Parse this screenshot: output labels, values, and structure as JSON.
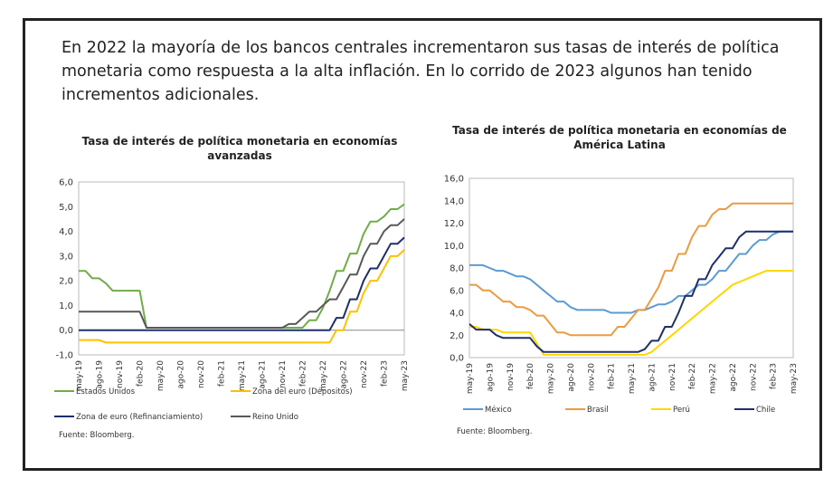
{
  "headline": "En 2022 la mayoría de los bancos centrales incrementaron sus tasas de interés de política monetaria como respuesta a la alta inflación. En lo corrido de 2023 algunos han tenido incrementos adicionales.",
  "chart_data": [
    {
      "type": "line",
      "title": "Tasa de interés de política monetaria en economías avanzadas",
      "ylim": [
        -1,
        6
      ],
      "yticks": [
        "-1,0",
        "0,0",
        "1,0",
        "2,0",
        "3,0",
        "4,0",
        "5,0",
        "6,0"
      ],
      "xticks": [
        "may-19",
        "ago-19",
        "nov-19",
        "feb-20",
        "may-20",
        "ago-20",
        "nov-20",
        "feb-21",
        "may-21",
        "ago-21",
        "nov-21",
        "feb-22",
        "may-22",
        "ago-22",
        "nov-22",
        "feb-23",
        "may-23"
      ],
      "x_range": [
        "may-19",
        "may-23"
      ],
      "frequency": "monthly",
      "grid": false,
      "legend": "bottom",
      "source": "Fuente: Bloomberg.",
      "series": [
        {
          "name": "Estados Unidos",
          "color": "#70ad47",
          "values": [
            2.4,
            2.4,
            2.1,
            2.1,
            1.9,
            1.6,
            1.6,
            1.6,
            1.6,
            1.6,
            0.1,
            0.1,
            0.1,
            0.1,
            0.1,
            0.1,
            0.1,
            0.1,
            0.1,
            0.1,
            0.1,
            0.1,
            0.1,
            0.1,
            0.1,
            0.1,
            0.1,
            0.1,
            0.1,
            0.1,
            0.1,
            0.1,
            0.1,
            0.1,
            0.4,
            0.4,
            0.9,
            1.6,
            2.4,
            2.4,
            3.1,
            3.1,
            3.9,
            4.4,
            4.4,
            4.6,
            4.9,
            4.9,
            5.1
          ]
        },
        {
          "name": "Zona del euro (Dépositos)",
          "color": "#ffc000",
          "values": [
            -0.4,
            -0.4,
            -0.4,
            -0.4,
            -0.5,
            -0.5,
            -0.5,
            -0.5,
            -0.5,
            -0.5,
            -0.5,
            -0.5,
            -0.5,
            -0.5,
            -0.5,
            -0.5,
            -0.5,
            -0.5,
            -0.5,
            -0.5,
            -0.5,
            -0.5,
            -0.5,
            -0.5,
            -0.5,
            -0.5,
            -0.5,
            -0.5,
            -0.5,
            -0.5,
            -0.5,
            -0.5,
            -0.5,
            -0.5,
            -0.5,
            -0.5,
            -0.5,
            -0.5,
            0,
            0,
            0.75,
            0.75,
            1.5,
            2.0,
            2.0,
            2.5,
            3.0,
            3.0,
            3.25
          ]
        },
        {
          "name": "Zona de euro (Refinanciamiento)",
          "color": "#1f2f6b",
          "values": [
            0,
            0,
            0,
            0,
            0,
            0,
            0,
            0,
            0,
            0,
            0,
            0,
            0,
            0,
            0,
            0,
            0,
            0,
            0,
            0,
            0,
            0,
            0,
            0,
            0,
            0,
            0,
            0,
            0,
            0,
            0,
            0,
            0,
            0,
            0,
            0,
            0,
            0,
            0.5,
            0.5,
            1.25,
            1.25,
            2.0,
            2.5,
            2.5,
            3.0,
            3.5,
            3.5,
            3.75
          ]
        },
        {
          "name": "Reino Unido",
          "color": "#595959",
          "values": [
            0.75,
            0.75,
            0.75,
            0.75,
            0.75,
            0.75,
            0.75,
            0.75,
            0.75,
            0.75,
            0.1,
            0.1,
            0.1,
            0.1,
            0.1,
            0.1,
            0.1,
            0.1,
            0.1,
            0.1,
            0.1,
            0.1,
            0.1,
            0.1,
            0.1,
            0.1,
            0.1,
            0.1,
            0.1,
            0.1,
            0.1,
            0.25,
            0.25,
            0.5,
            0.75,
            0.75,
            1.0,
            1.25,
            1.25,
            1.75,
            2.25,
            2.25,
            3.0,
            3.5,
            3.5,
            4.0,
            4.25,
            4.25,
            4.5
          ]
        }
      ]
    },
    {
      "type": "line",
      "title": "Tasa de interés de política monetaria en economías de América Latina",
      "ylim": [
        0,
        16
      ],
      "yticks": [
        "0,0",
        "2,0",
        "4,0",
        "6,0",
        "8,0",
        "10,0",
        "12,0",
        "14,0",
        "16,0"
      ],
      "xticks": [
        "may-19",
        "ago-19",
        "nov-19",
        "feb-20",
        "may-20",
        "ago-20",
        "nov-20",
        "feb-21",
        "may-21",
        "ago-21",
        "nov-21",
        "feb-22",
        "may-22",
        "ago-22",
        "nov-22",
        "feb-23",
        "may-23"
      ],
      "x_range": [
        "may-19",
        "may-23"
      ],
      "frequency": "monthly",
      "grid": false,
      "legend": "bottom",
      "source": "Fuente: Bloomberg.",
      "series": [
        {
          "name": "México",
          "color": "#5b9bd5",
          "values": [
            8.25,
            8.25,
            8.25,
            8.0,
            7.75,
            7.75,
            7.5,
            7.25,
            7.25,
            7.0,
            6.5,
            6.0,
            5.5,
            5.0,
            5.0,
            4.5,
            4.25,
            4.25,
            4.25,
            4.25,
            4.25,
            4.0,
            4.0,
            4.0,
            4.0,
            4.25,
            4.25,
            4.5,
            4.75,
            4.75,
            5.0,
            5.5,
            5.5,
            6.0,
            6.5,
            6.5,
            7.0,
            7.75,
            7.75,
            8.5,
            9.25,
            9.25,
            10.0,
            10.5,
            10.5,
            11.0,
            11.25,
            11.25,
            11.25
          ]
        },
        {
          "name": "Brasil",
          "color": "#ed9b40",
          "values": [
            6.5,
            6.5,
            6.0,
            6.0,
            5.5,
            5.0,
            5.0,
            4.5,
            4.5,
            4.25,
            3.75,
            3.75,
            3.0,
            2.25,
            2.25,
            2.0,
            2.0,
            2.0,
            2.0,
            2.0,
            2.0,
            2.0,
            2.75,
            2.75,
            3.5,
            4.25,
            4.25,
            5.25,
            6.25,
            7.75,
            7.75,
            9.25,
            9.25,
            10.75,
            11.75,
            11.75,
            12.75,
            13.25,
            13.25,
            13.75,
            13.75,
            13.75,
            13.75,
            13.75,
            13.75,
            13.75,
            13.75,
            13.75,
            13.75
          ]
        },
        {
          "name": "Perú",
          "color": "#ffd700",
          "values": [
            2.75,
            2.75,
            2.5,
            2.5,
            2.5,
            2.25,
            2.25,
            2.25,
            2.25,
            2.25,
            1.25,
            0.25,
            0.25,
            0.25,
            0.25,
            0.25,
            0.25,
            0.25,
            0.25,
            0.25,
            0.25,
            0.25,
            0.25,
            0.25,
            0.25,
            0.25,
            0.25,
            0.5,
            1.0,
            1.5,
            2.0,
            2.5,
            3.0,
            3.5,
            4.0,
            4.5,
            5.0,
            5.5,
            6.0,
            6.5,
            6.75,
            7.0,
            7.25,
            7.5,
            7.75,
            7.75,
            7.75,
            7.75,
            7.75
          ]
        },
        {
          "name": "Chile",
          "color": "#1f2f6b",
          "values": [
            3.0,
            2.5,
            2.5,
            2.5,
            2.0,
            1.75,
            1.75,
            1.75,
            1.75,
            1.75,
            1.0,
            0.5,
            0.5,
            0.5,
            0.5,
            0.5,
            0.5,
            0.5,
            0.5,
            0.5,
            0.5,
            0.5,
            0.5,
            0.5,
            0.5,
            0.5,
            0.75,
            1.5,
            1.5,
            2.75,
            2.75,
            4.0,
            5.5,
            5.5,
            7.0,
            7.0,
            8.25,
            9.0,
            9.75,
            9.75,
            10.75,
            11.25,
            11.25,
            11.25,
            11.25,
            11.25,
            11.25,
            11.25,
            11.25
          ]
        }
      ]
    }
  ]
}
